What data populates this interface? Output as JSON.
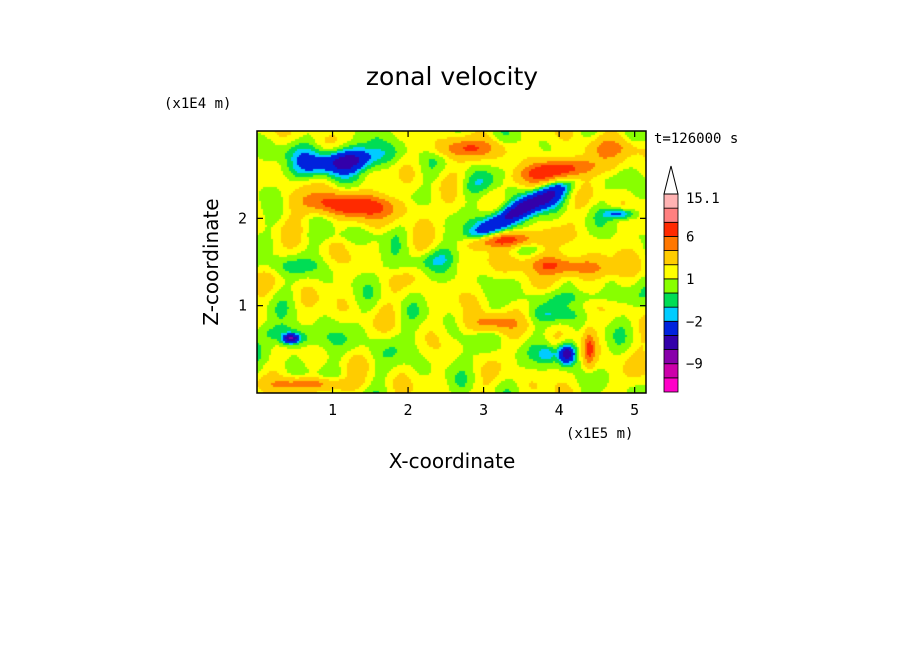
{
  "chart_data": {
    "type": "heatmap",
    "title": "zonal velocity",
    "xlabel": "X-coordinate",
    "ylabel": "Z-coordinate",
    "x_unit_label": "(x1E5 m)",
    "y_unit_label": "(x1E4 m)",
    "time_label": "t=126000 s",
    "xlim": [
      0,
      5.15
    ],
    "ylim": [
      0,
      3.0
    ],
    "x_ticks": [
      1,
      2,
      3,
      4,
      5
    ],
    "x_tick_labels": [
      "1",
      "2",
      "3",
      "4",
      "5"
    ],
    "y_ticks": [
      1,
      2
    ],
    "y_tick_labels": [
      "1",
      "2"
    ],
    "colorbar": {
      "levels": [
        -12,
        -9,
        -6,
        -4,
        -2,
        -1,
        0,
        1,
        2,
        4,
        6,
        9,
        12,
        15.1
      ],
      "colors": [
        "#ff00c8",
        "#cc00aa",
        "#8800aa",
        "#3300aa",
        "#0022dd",
        "#00ccff",
        "#00dd55",
        "#88ff00",
        "#ffff00",
        "#ffcc00",
        "#ff7700",
        "#ff2a00",
        "#ff8080",
        "#ffb3b3"
      ],
      "extend_top": true,
      "labeled_ticks": [
        {
          "value": 15.1,
          "label": "15.1"
        },
        {
          "value": 6,
          "label": "6"
        },
        {
          "value": 1,
          "label": "1"
        },
        {
          "value": -2,
          "label": "−2"
        },
        {
          "value": -9,
          "label": "−9"
        }
      ]
    },
    "field": {
      "background": 1.3,
      "features": [
        {
          "x": 1.15,
          "z": 2.65,
          "rx": 0.55,
          "rz": 0.14,
          "value": -6,
          "tilt": 0.12
        },
        {
          "x": 3.5,
          "z": 2.1,
          "rx": 0.65,
          "rz": 0.14,
          "value": -7,
          "tilt": 0.45
        },
        {
          "x": 3.1,
          "z": 2.45,
          "rx": 0.5,
          "rz": 0.12,
          "value": -1.5,
          "tilt": 0.3
        },
        {
          "x": 1.25,
          "z": 2.15,
          "rx": 0.6,
          "rz": 0.13,
          "value": 7,
          "tilt": -0.05
        },
        {
          "x": 4.0,
          "z": 2.55,
          "rx": 0.55,
          "rz": 0.12,
          "value": 7,
          "tilt": 0.1
        },
        {
          "x": 3.3,
          "z": 1.75,
          "rx": 0.45,
          "rz": 0.08,
          "value": 6,
          "tilt": 0.05
        },
        {
          "x": 4.1,
          "z": 1.45,
          "rx": 0.6,
          "rz": 0.11,
          "value": 5,
          "tilt": -0.05
        },
        {
          "x": 0.6,
          "z": 2.75,
          "rx": 0.5,
          "rz": 0.12,
          "value": -1.2,
          "tilt": 0.0
        },
        {
          "x": 2.8,
          "z": 2.8,
          "rx": 0.45,
          "rz": 0.1,
          "value": 4,
          "tilt": 0.0
        },
        {
          "x": 0.3,
          "z": 1.45,
          "rx": 0.55,
          "rz": 0.1,
          "value": -1.2,
          "tilt": 0.0
        },
        {
          "x": 2.2,
          "z": 1.5,
          "rx": 0.5,
          "rz": 0.1,
          "value": -1.2,
          "tilt": 0.1
        },
        {
          "x": 4.3,
          "z": 1.1,
          "rx": 0.6,
          "rz": 0.09,
          "value": -1.5,
          "tilt": 0.0
        },
        {
          "x": 0.45,
          "z": 0.65,
          "rx": 0.4,
          "rz": 0.12,
          "value": -2.5,
          "tilt": -0.1
        },
        {
          "x": 0.45,
          "z": 0.62,
          "rx": 0.1,
          "rz": 0.05,
          "value": -6,
          "tilt": 0.0
        },
        {
          "x": 1.6,
          "z": 0.55,
          "rx": 0.9,
          "rz": 0.18,
          "value": -0.5,
          "tilt": 0.0
        },
        {
          "x": 3.0,
          "z": 0.45,
          "rx": 0.5,
          "rz": 0.2,
          "value": -0.4,
          "tilt": 0.0
        },
        {
          "x": 3.1,
          "z": 0.8,
          "rx": 0.3,
          "rz": 0.1,
          "value": 4,
          "tilt": 0.0
        },
        {
          "x": 4.1,
          "z": 0.45,
          "rx": 0.12,
          "rz": 0.12,
          "value": -7,
          "tilt": 0.0
        },
        {
          "x": 3.85,
          "z": 0.45,
          "rx": 0.12,
          "rz": 0.1,
          "value": -2.5,
          "tilt": 0.0
        },
        {
          "x": 4.4,
          "z": 0.5,
          "rx": 0.08,
          "rz": 0.2,
          "value": 5,
          "tilt": 0.0
        },
        {
          "x": 0.7,
          "z": 0.1,
          "rx": 0.5,
          "rz": 0.07,
          "value": 4,
          "tilt": 0.0
        },
        {
          "x": 3.9,
          "z": 0.9,
          "rx": 0.4,
          "rz": 0.1,
          "value": -1.4,
          "tilt": 0.0
        },
        {
          "x": 4.8,
          "z": 2.05,
          "rx": 0.2,
          "rz": 0.06,
          "value": -4,
          "tilt": 0.0
        },
        {
          "x": 1.3,
          "z": 1.8,
          "rx": 0.6,
          "rz": 0.06,
          "value": -0.6,
          "tilt": 0.0
        },
        {
          "x": 4.7,
          "z": 2.8,
          "rx": 0.4,
          "rz": 0.1,
          "value": 2.5,
          "tilt": 0.0
        }
      ]
    }
  }
}
